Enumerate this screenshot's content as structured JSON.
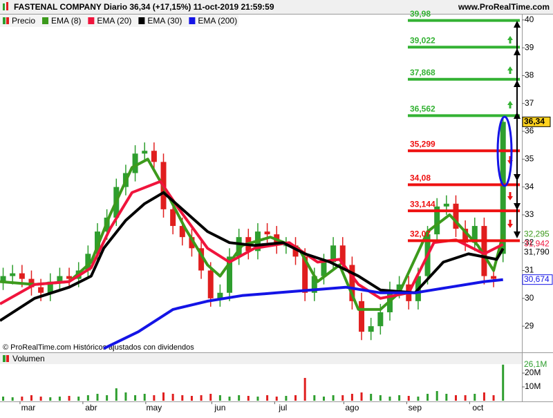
{
  "header": {
    "title": "FASTENAL COMPANY Diario 36,34 (+17,15%) 11-oct-2019 21:59:59",
    "site": "www.ProRealTime.com",
    "footer": "© ProRealTime.com  Históricos ajustados con dividendos"
  },
  "chart_data": [
    {
      "type": "candlestick",
      "name": "Precio",
      "up_color": "#2e9e2e",
      "down_color": "#e01e1e",
      "x": [
        1,
        4,
        7,
        10,
        13,
        16,
        19,
        22,
        25,
        28,
        31,
        34,
        37,
        40,
        43,
        46,
        49,
        52,
        55,
        58,
        61,
        64,
        67,
        70,
        73,
        76,
        79,
        82,
        85,
        88,
        91,
        94,
        97,
        100,
        103,
        106,
        109,
        112,
        115,
        118,
        121,
        124,
        127,
        130,
        133,
        136,
        139,
        142,
        145,
        148,
        151,
        154,
        157,
        160
      ],
      "open": [
        30.6,
        30.8,
        30.9,
        30.7,
        30.4,
        30.2,
        30.6,
        30.8,
        30.7,
        31.0,
        31.6,
        32.4,
        32.9,
        34.0,
        34.5,
        35.2,
        35.3,
        34.9,
        33.2,
        32.6,
        32.2,
        31.8,
        31.0,
        30.0,
        30.2,
        31.5,
        32.2,
        31.7,
        32.4,
        32.3,
        31.9,
        31.9,
        31.5,
        30.2,
        30.8,
        31.3,
        31.9,
        31.2,
        29.9,
        28.8,
        29.0,
        29.5,
        30.3,
        30.5,
        29.9,
        30.8,
        32.3,
        33.3,
        33.4,
        32.5,
        32.0,
        32.6,
        30.8,
        31.6
      ],
      "high": [
        31.1,
        31.2,
        31.2,
        31.0,
        30.7,
        30.9,
        31.1,
        31.1,
        31.3,
        31.9,
        32.7,
        33.2,
        34.3,
        34.8,
        35.5,
        35.6,
        35.6,
        35.2,
        33.5,
        32.9,
        32.5,
        32.1,
        31.3,
        30.5,
        31.8,
        32.5,
        32.5,
        32.7,
        32.7,
        32.6,
        32.2,
        32.2,
        31.8,
        31.1,
        31.6,
        32.2,
        32.2,
        31.5,
        30.2,
        29.3,
        29.8,
        30.6,
        30.8,
        30.8,
        31.1,
        32.6,
        33.6,
        33.7,
        33.7,
        32.8,
        32.9,
        32.9,
        31.1,
        36.5
      ],
      "low": [
        30.3,
        30.5,
        30.4,
        30.1,
        29.9,
        29.9,
        30.3,
        30.4,
        30.4,
        30.7,
        31.3,
        32.1,
        32.6,
        33.7,
        34.2,
        34.9,
        34.6,
        32.9,
        32.3,
        31.9,
        31.5,
        30.7,
        29.7,
        29.7,
        29.9,
        31.2,
        31.4,
        31.4,
        32.0,
        31.6,
        31.6,
        31.2,
        29.9,
        29.9,
        30.5,
        31.0,
        30.9,
        29.6,
        28.5,
        28.5,
        28.7,
        29.2,
        30.0,
        29.6,
        29.6,
        30.5,
        32.0,
        33.0,
        32.2,
        31.7,
        31.7,
        30.5,
        30.4,
        31.3
      ],
      "close": [
        30.8,
        30.9,
        30.7,
        30.4,
        30.2,
        30.6,
        30.8,
        30.7,
        31.0,
        31.6,
        32.4,
        32.9,
        34.0,
        34.5,
        35.2,
        35.3,
        34.9,
        33.2,
        32.6,
        32.2,
        31.8,
        31.0,
        30.0,
        30.2,
        31.5,
        32.2,
        31.7,
        32.4,
        32.3,
        31.9,
        31.9,
        31.5,
        30.2,
        30.8,
        31.3,
        31.9,
        31.2,
        29.9,
        28.8,
        29.0,
        29.5,
        30.3,
        30.5,
        29.9,
        30.8,
        32.3,
        33.3,
        33.4,
        32.5,
        32.0,
        32.6,
        30.8,
        30.7,
        36.34
      ],
      "price_label": "36,34",
      "series": [
        {
          "name": "EMA (8)",
          "color": "#3c9a1c",
          "x": [
            0,
            11,
            22,
            29,
            35,
            42,
            47,
            53,
            59,
            66,
            70,
            77,
            86,
            95,
            101,
            108,
            114,
            121,
            127,
            136,
            143,
            152,
            157,
            160
          ],
          "values": [
            30.6,
            30.5,
            30.6,
            31.3,
            33.0,
            34.7,
            35.0,
            33.8,
            32.5,
            31.2,
            30.8,
            31.9,
            32.2,
            31.8,
            30.6,
            31.2,
            29.6,
            29.6,
            30.2,
            32.4,
            33.0,
            31.9,
            31.0,
            32.295
          ],
          "last_label": "32,295"
        },
        {
          "name": "EMA (20)",
          "color": "#f0143c",
          "x": [
            0,
            11,
            22,
            29,
            35,
            42,
            51,
            57,
            66,
            73,
            81,
            92,
            101,
            108,
            114,
            121,
            130,
            138,
            145,
            154,
            160
          ],
          "values": [
            29.8,
            30.5,
            30.6,
            31.1,
            32.5,
            33.8,
            34.2,
            33.2,
            31.8,
            31.3,
            31.8,
            32.0,
            31.3,
            31.4,
            30.5,
            30.0,
            30.2,
            32.0,
            32.1,
            31.6,
            31.942
          ],
          "last_label": "31,942"
        },
        {
          "name": "EMA (30)",
          "color": "#000000",
          "x": [
            0,
            11,
            22,
            29,
            33,
            40,
            46,
            52,
            57,
            66,
            73,
            81,
            90,
            97,
            105,
            114,
            121,
            132,
            141,
            149,
            158,
            160
          ],
          "values": [
            29.2,
            30.0,
            30.4,
            30.8,
            31.8,
            32.8,
            33.4,
            33.8,
            33.3,
            32.4,
            32.0,
            31.9,
            32.0,
            31.6,
            31.3,
            30.8,
            30.3,
            30.2,
            31.3,
            31.6,
            31.4,
            31.79
          ],
          "last_label": "31,790"
        },
        {
          "name": "EMA (200)",
          "color": "#1414e6",
          "x": [
            33,
            44,
            55,
            66,
            77,
            88,
            99,
            110,
            121,
            132,
            143,
            154,
            160
          ],
          "values": [
            28.2,
            28.8,
            29.6,
            29.9,
            30.1,
            30.2,
            30.3,
            30.4,
            30.2,
            30.2,
            30.4,
            30.6,
            30.674
          ],
          "last_label": "30,674"
        }
      ],
      "levels": [
        {
          "value": 39.98,
          "label": "39,98",
          "color": "#33b233"
        },
        {
          "value": 39.022,
          "label": "39,022",
          "color": "#33b233"
        },
        {
          "value": 37.868,
          "label": "37,868",
          "color": "#33b233"
        },
        {
          "value": 36.562,
          "label": "36,562",
          "color": "#33b233"
        },
        {
          "value": 35.299,
          "label": "35,299",
          "color": "#ee1111"
        },
        {
          "value": 34.08,
          "label": "34,08",
          "color": "#ee1111"
        },
        {
          "value": 33.144,
          "label": "33,144",
          "color": "#ee1111"
        },
        {
          "value": 32.07,
          "label": "32,07",
          "color": "#ee1111"
        }
      ],
      "xlim": [
        0,
        166
      ],
      "ylim": [
        28.06,
        40.22
      ],
      "yticks": [
        29,
        30,
        31,
        32,
        33,
        34,
        35,
        36,
        37,
        38,
        39,
        40
      ],
      "xticks": [
        {
          "value": 9,
          "label": "mar"
        },
        {
          "value": 29,
          "label": "abr"
        },
        {
          "value": 49,
          "label": "may"
        },
        {
          "value": 70,
          "label": "jun"
        },
        {
          "value": 90,
          "label": "jul"
        },
        {
          "value": 112,
          "label": "ago"
        },
        {
          "value": 132,
          "label": "sep"
        },
        {
          "value": 152,
          "label": "oct"
        }
      ]
    },
    {
      "type": "bar",
      "title": "Volumen",
      "values": [
        3,
        2.5,
        3,
        4,
        3,
        2.5,
        3,
        3.5,
        3,
        4,
        5,
        4,
        9,
        6,
        4,
        5,
        4,
        6,
        5,
        4,
        3.5,
        4,
        5,
        4,
        3,
        4,
        3.5,
        3,
        4,
        3,
        3.5,
        4,
        16.5,
        4,
        3,
        4,
        4,
        5,
        6,
        5,
        4,
        3,
        4,
        3.5,
        3,
        5,
        7,
        5,
        4,
        4,
        5,
        6,
        4,
        26.1
      ],
      "last_label": "26,1M",
      "ylim": [
        0,
        34
      ],
      "yticks": [
        {
          "value": 10,
          "label": "10M"
        },
        {
          "value": 20,
          "label": "20M"
        }
      ]
    }
  ]
}
